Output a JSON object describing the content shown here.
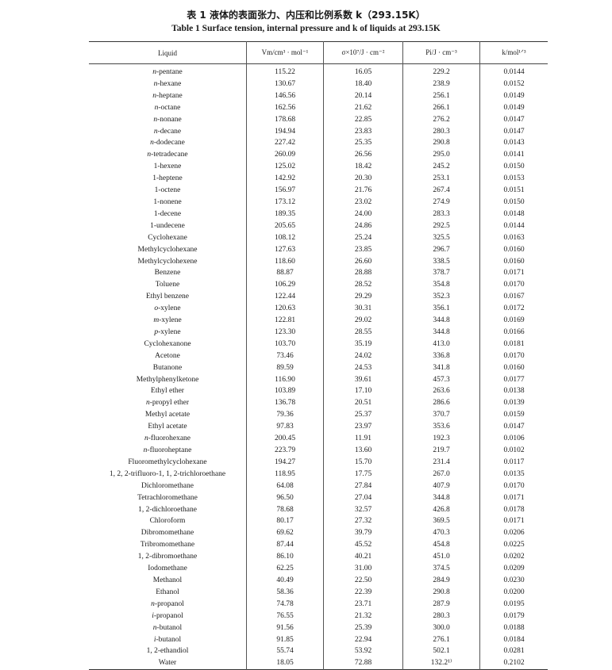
{
  "title_cn": "表 1  液体的表面张力、内压和比例系数 k（293.15K）",
  "title_en": "Table 1   Surface tension, internal pressure and k of liquids at 293.15K",
  "columns": [
    "Liquid",
    "Vm/cm³ · mol⁻¹",
    "σ×10⁷/J · cm⁻²",
    "Pi/J · cm⁻³",
    "k/mol¹ᐟ³"
  ],
  "rows": [
    [
      "n-pentane",
      "115.22",
      "16.05",
      "229.2",
      "0.0144"
    ],
    [
      "n-hexane",
      "130.67",
      "18.40",
      "238.9",
      "0.0152"
    ],
    [
      "n-heptane",
      "146.56",
      "20.14",
      "256.1",
      "0.0149"
    ],
    [
      "n-octane",
      "162.56",
      "21.62",
      "266.1",
      "0.0149"
    ],
    [
      "n-nonane",
      "178.68",
      "22.85",
      "276.2",
      "0.0147"
    ],
    [
      "n-decane",
      "194.94",
      "23.83",
      "280.3",
      "0.0147"
    ],
    [
      "n-dodecane",
      "227.42",
      "25.35",
      "290.8",
      "0.0143"
    ],
    [
      "n-tetradecane",
      "260.09",
      "26.56",
      "295.0",
      "0.0141"
    ],
    [
      "1-hexene",
      "125.02",
      "18.42",
      "245.2",
      "0.0150"
    ],
    [
      "1-heptene",
      "142.92",
      "20.30",
      "253.1",
      "0.0153"
    ],
    [
      "1-octene",
      "156.97",
      "21.76",
      "267.4",
      "0.0151"
    ],
    [
      "1-nonene",
      "173.12",
      "23.02",
      "274.9",
      "0.0150"
    ],
    [
      "1-decene",
      "189.35",
      "24.00",
      "283.3",
      "0.0148"
    ],
    [
      "1-undecene",
      "205.65",
      "24.86",
      "292.5",
      "0.0144"
    ],
    [
      "Cyclohexane",
      "108.12",
      "25.24",
      "325.5",
      "0.0163"
    ],
    [
      "Methylcyclohexane",
      "127.63",
      "23.85",
      "296.7",
      "0.0160"
    ],
    [
      "Methylcyclohexene",
      "118.60",
      "26.60",
      "338.5",
      "0.0160"
    ],
    [
      "Benzene",
      "88.87",
      "28.88",
      "378.7",
      "0.0171"
    ],
    [
      "Toluene",
      "106.29",
      "28.52",
      "354.8",
      "0.0170"
    ],
    [
      "Ethyl benzene",
      "122.44",
      "29.29",
      "352.3",
      "0.0167"
    ],
    [
      "o-xylene",
      "120.63",
      "30.31",
      "356.1",
      "0.0172"
    ],
    [
      "m-xylene",
      "122.81",
      "29.02",
      "344.8",
      "0.0169"
    ],
    [
      "p-xylene",
      "123.30",
      "28.55",
      "344.8",
      "0.0166"
    ],
    [
      "Cyclohexanone",
      "103.70",
      "35.19",
      "413.0",
      "0.0181"
    ],
    [
      "Acetone",
      "73.46",
      "24.02",
      "336.8",
      "0.0170"
    ],
    [
      "Butanone",
      "89.59",
      "24.53",
      "341.8",
      "0.0160"
    ],
    [
      "Methylphenylketone",
      "116.90",
      "39.61",
      "457.3",
      "0.0177"
    ],
    [
      "Ethyl ether",
      "103.89",
      "17.10",
      "263.6",
      "0.0138"
    ],
    [
      "n-propyl ether",
      "136.78",
      "20.51",
      "286.6",
      "0.0139"
    ],
    [
      "Methyl acetate",
      "79.36",
      "25.37",
      "370.7",
      "0.0159"
    ],
    [
      "Ethyl acetate",
      "97.83",
      "23.97",
      "353.6",
      "0.0147"
    ],
    [
      "n-fluorohexane",
      "200.45",
      "11.91",
      "192.3",
      "0.0106"
    ],
    [
      "n-fluoroheptane",
      "223.79",
      "13.60",
      "219.7",
      "0.0102"
    ],
    [
      "Fluoromethylcyclohexane",
      "194.27",
      "15.70",
      "231.4",
      "0.0117"
    ],
    [
      "1, 2, 2-trifluoro-1, 1, 2-trichloroethane",
      "118.95",
      "17.75",
      "267.0",
      "0.0135"
    ],
    [
      "Dichloromethane",
      "64.08",
      "27.84",
      "407.9",
      "0.0170"
    ],
    [
      "Tetrachloromethane",
      "96.50",
      "27.04",
      "344.8",
      "0.0171"
    ],
    [
      "1, 2-dichloroethane",
      "78.68",
      "32.57",
      "426.8",
      "0.0178"
    ],
    [
      "Chloroform",
      "80.17",
      "27.32",
      "369.5",
      "0.0171"
    ],
    [
      "Dibromomethane",
      "69.62",
      "39.79",
      "470.3",
      "0.0206"
    ],
    [
      "Tribromomethane",
      "87.44",
      "45.52",
      "454.8",
      "0.0225"
    ],
    [
      "1, 2-dibromoethane",
      "86.10",
      "40.21",
      "451.0",
      "0.0202"
    ],
    [
      "Iodomethane",
      "62.25",
      "31.00",
      "374.5",
      "0.0209"
    ],
    [
      "Methanol",
      "40.49",
      "22.50",
      "284.9",
      "0.0230"
    ],
    [
      "Ethanol",
      "58.36",
      "22.39",
      "290.8",
      "0.0200"
    ],
    [
      "n-propanol",
      "74.78",
      "23.71",
      "287.9",
      "0.0195"
    ],
    [
      "i-propanol",
      "76.55",
      "21.32",
      "280.3",
      "0.0179"
    ],
    [
      "n-butanol",
      "91.56",
      "25.39",
      "300.0",
      "0.0188"
    ],
    [
      "i-butanol",
      "91.85",
      "22.94",
      "276.1",
      "0.0184"
    ],
    [
      "1, 2-ethandiol",
      "55.74",
      "53.92",
      "502.1",
      "0.0281"
    ],
    [
      "Water",
      "18.05",
      "72.88",
      "132.2¹⁾",
      "0.2102"
    ]
  ]
}
